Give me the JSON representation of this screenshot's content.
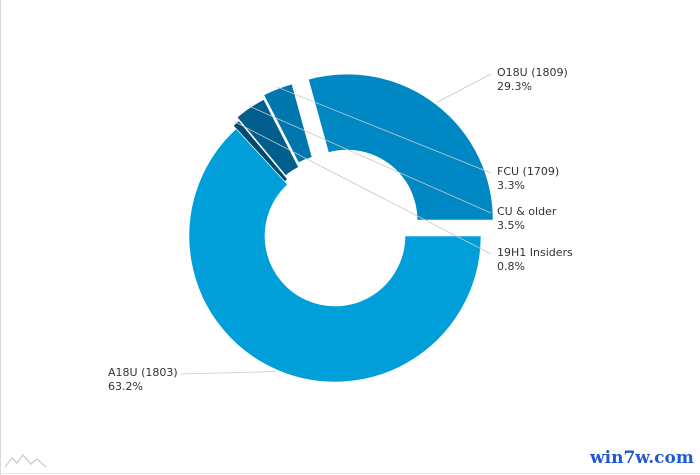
{
  "chart_data": {
    "type": "pie",
    "style": "donut",
    "title": "",
    "slices": [
      {
        "name": "O18U (1809)",
        "value": 29.3,
        "percent_label": "29.3%",
        "color": "#0088c4",
        "exploded": true,
        "label_side": "right"
      },
      {
        "name": "FCU (1709)",
        "value": 3.3,
        "percent_label": "3.3%",
        "color": "#0076ae",
        "exploded": true,
        "label_side": "right"
      },
      {
        "name": "CU & older",
        "value": 3.5,
        "percent_label": "3.5%",
        "color": "#005e8c",
        "exploded": true,
        "label_side": "right"
      },
      {
        "name": "19H1 Insiders",
        "value": 0.8,
        "percent_label": "0.8%",
        "color": "#004a70",
        "exploded": true,
        "label_side": "right"
      },
      {
        "name": "A18U (1803)",
        "value": 63.2,
        "percent_label": "63.2%",
        "color": "#009fda",
        "exploded": false,
        "label_side": "left"
      }
    ],
    "legend": "none",
    "grid": false
  },
  "watermark": {
    "text": "win7w.com",
    "color": "#1f57d6"
  },
  "corner_logo_icon": "mountain-logo-icon"
}
